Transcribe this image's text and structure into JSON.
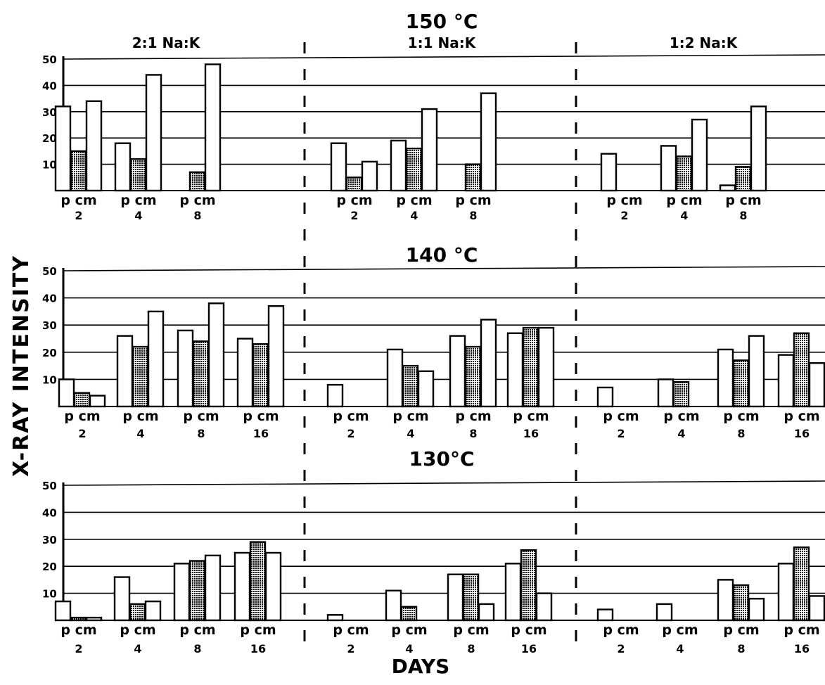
{
  "ylabel": "X-RAY INTENSITY",
  "xlabel": "DAYS",
  "y_ticks": [
    "10",
    "20",
    "30",
    "40",
    "50"
  ],
  "bar_letters": [
    "p",
    "c",
    "m"
  ],
  "groups": [
    "2:1  Na:K",
    "1:1  Na:K",
    "1:2  Na:K"
  ],
  "colors": {
    "ink": "#000000",
    "paper": "#ffffff",
    "stipple": "#8c8c8c"
  },
  "chart_data": [
    {
      "type": "bar",
      "title": "150 °C",
      "ylim": [
        0,
        50
      ],
      "series_names": [
        "p",
        "c",
        "m"
      ],
      "panels": [
        {
          "group": "2:1  Na:K",
          "days": [
            2,
            4,
            8
          ],
          "p": [
            32,
            18,
            0
          ],
          "c": [
            15,
            12,
            7
          ],
          "m": [
            34,
            44,
            48
          ]
        },
        {
          "group": "1:1  Na:K",
          "days": [
            2,
            4,
            8
          ],
          "p": [
            18,
            19,
            0
          ],
          "c": [
            5,
            16,
            10
          ],
          "m": [
            11,
            31,
            37
          ]
        },
        {
          "group": "1:2  Na:K",
          "days": [
            2,
            4,
            8
          ],
          "p": [
            14,
            17,
            2
          ],
          "c": [
            0,
            13,
            9
          ],
          "m": [
            0,
            27,
            32
          ]
        }
      ]
    },
    {
      "type": "bar",
      "title": "140 °C",
      "ylim": [
        0,
        50
      ],
      "series_names": [
        "p",
        "c",
        "m"
      ],
      "panels": [
        {
          "group": "2:1  Na:K",
          "days": [
            2,
            4,
            8,
            16
          ],
          "p": [
            10,
            26,
            28,
            25
          ],
          "c": [
            5,
            22,
            24,
            23
          ],
          "m": [
            4,
            35,
            38,
            37
          ]
        },
        {
          "group": "1:1  Na:K",
          "days": [
            2,
            4,
            8,
            16
          ],
          "p": [
            8,
            21,
            26,
            27
          ],
          "c": [
            0,
            15,
            22,
            29
          ],
          "m": [
            0,
            13,
            32,
            29
          ]
        },
        {
          "group": "1:2  Na:K",
          "days": [
            2,
            4,
            8,
            16
          ],
          "p": [
            7,
            10,
            21,
            19
          ],
          "c": [
            0,
            9,
            17,
            27
          ],
          "m": [
            0,
            0,
            26,
            16
          ]
        }
      ]
    },
    {
      "type": "bar",
      "title": "130°C",
      "ylim": [
        0,
        50
      ],
      "series_names": [
        "p",
        "c",
        "m"
      ],
      "panels": [
        {
          "group": "2:1  Na:K",
          "days": [
            2,
            4,
            8,
            16
          ],
          "p": [
            7,
            16,
            21,
            25
          ],
          "c": [
            1,
            6,
            22,
            29
          ],
          "m": [
            1,
            7,
            24,
            25
          ]
        },
        {
          "group": "1:1  Na:K",
          "days": [
            2,
            4,
            8,
            16
          ],
          "p": [
            2,
            11,
            17,
            21
          ],
          "c": [
            0,
            5,
            17,
            26
          ],
          "m": [
            0,
            0,
            6,
            10
          ]
        },
        {
          "group": "1:2  Na:K",
          "days": [
            2,
            4,
            8,
            16
          ],
          "p": [
            4,
            6,
            15,
            21
          ],
          "c": [
            0,
            0,
            13,
            27
          ],
          "m": [
            0,
            0,
            8,
            9
          ]
        }
      ]
    }
  ]
}
